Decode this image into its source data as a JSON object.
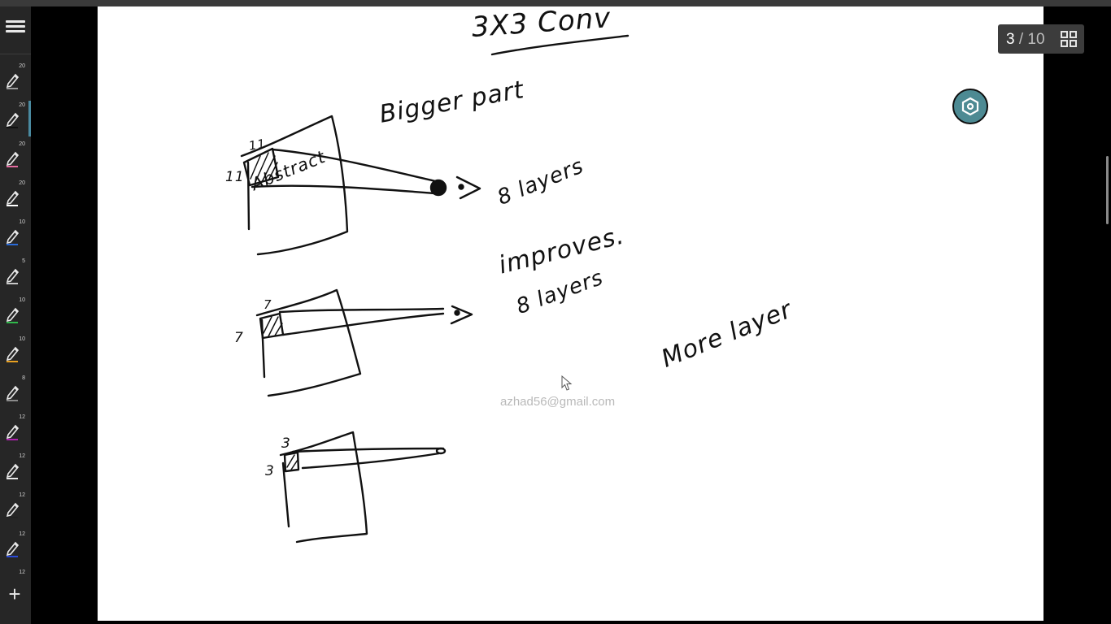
{
  "app": {
    "accent_color": "#4a8aa0",
    "fab_color": "#4d8a93"
  },
  "toolbar": {
    "menu_icon": "hamburger-icon",
    "tools": [
      {
        "size": "20",
        "color": "#9a9a9a"
      },
      {
        "size": "20",
        "color": "#111111",
        "active": true
      },
      {
        "size": "20",
        "color": "#e46aa0"
      },
      {
        "size": "20",
        "color": "#ffffff"
      },
      {
        "size": "10",
        "color": "#2a6ad8"
      },
      {
        "size": "5",
        "color": "#c8c8c8"
      },
      {
        "size": "10",
        "color": "#2fb84a"
      },
      {
        "size": "10",
        "color": "#e8a020"
      },
      {
        "size": "8",
        "color": "#8a8a8a"
      },
      {
        "size": "12",
        "color": "#b020b0"
      },
      {
        "size": "12",
        "color": "#e8e8e8"
      },
      {
        "size": "12",
        "color": "#222222"
      },
      {
        "size": "12",
        "color": "#2a4ad8"
      }
    ],
    "add_size": "12",
    "add_label": "+"
  },
  "pager": {
    "current": "3",
    "separator": "/",
    "total": "10",
    "view_icon": "grid-view-icon"
  },
  "watermark": "azhad56@gmail.com",
  "fab_icon": "hexagon-settings-icon",
  "handwriting": [
    "3X3 Conv",
    "Bigger part",
    "11",
    "11",
    "Abstract",
    "8 layers",
    "improves.",
    "8 layers",
    "7",
    "7",
    "More layer",
    "3",
    "3"
  ]
}
